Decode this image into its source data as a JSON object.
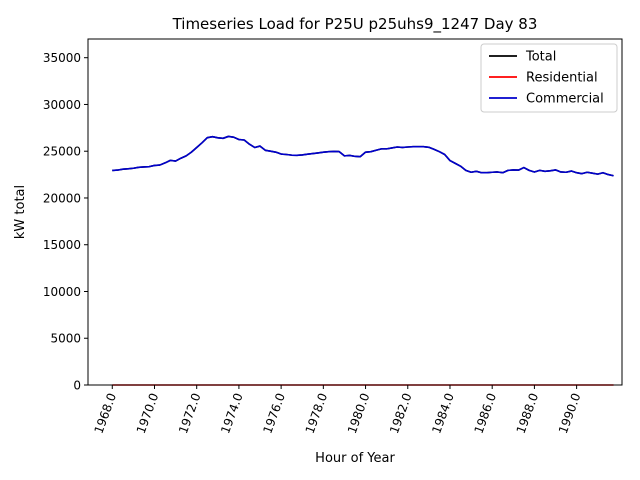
{
  "chart_data": {
    "type": "line",
    "title": "Timeseries Load for P25U p25uhs9_1247  Day 83",
    "xlabel": "Hour of Year",
    "ylabel": "kW total",
    "xlim": [
      1966.85,
      1992.15
    ],
    "ylim": [
      0,
      37000
    ],
    "xticks": [
      1968,
      1970,
      1972,
      1974,
      1976,
      1978,
      1980,
      1982,
      1984,
      1986,
      1988,
      1990
    ],
    "xtick_labels": [
      "1968.0",
      "1970.0",
      "1972.0",
      "1974.0",
      "1976.0",
      "1978.0",
      "1980.0",
      "1982.0",
      "1984.0",
      "1986.0",
      "1988.0",
      "1990.0"
    ],
    "yticks": [
      0,
      5000,
      10000,
      15000,
      20000,
      25000,
      30000,
      35000
    ],
    "ytick_labels": [
      "0",
      "5000",
      "10000",
      "15000",
      "20000",
      "25000",
      "30000",
      "35000"
    ],
    "legend_position": "top-right",
    "series": [
      {
        "name": "Total",
        "color": "#000000",
        "role": "total"
      },
      {
        "name": "Residential",
        "color": "#ff0000",
        "role": "residential"
      },
      {
        "name": "Commercial",
        "color": "#0000cc",
        "role": "commercial"
      }
    ],
    "x": [
      1968.0,
      1968.25,
      1968.5,
      1968.75,
      1969.0,
      1969.25,
      1969.5,
      1969.75,
      1970.0,
      1970.25,
      1970.5,
      1970.75,
      1971.0,
      1971.25,
      1971.5,
      1971.75,
      1972.0,
      1972.25,
      1972.5,
      1972.75,
      1973.0,
      1973.25,
      1973.5,
      1973.75,
      1974.0,
      1974.25,
      1974.5,
      1974.75,
      1975.0,
      1975.25,
      1975.5,
      1975.75,
      1976.0,
      1976.25,
      1976.5,
      1976.75,
      1977.0,
      1977.25,
      1977.5,
      1977.75,
      1978.0,
      1978.25,
      1978.5,
      1978.75,
      1979.0,
      1979.25,
      1979.5,
      1979.75,
      1980.0,
      1980.25,
      1980.5,
      1980.75,
      1981.0,
      1981.25,
      1981.5,
      1981.75,
      1982.0,
      1982.25,
      1982.5,
      1982.75,
      1983.0,
      1983.25,
      1983.5,
      1983.75,
      1984.0,
      1984.25,
      1984.5,
      1984.75,
      1985.0,
      1985.25,
      1985.5,
      1985.75,
      1986.0,
      1986.25,
      1986.5,
      1986.75,
      1987.0,
      1987.25,
      1987.5,
      1987.75,
      1988.0,
      1988.25,
      1988.5,
      1988.75,
      1989.0,
      1989.25,
      1989.5,
      1989.75,
      1990.0,
      1990.25,
      1990.5,
      1990.75,
      1991.0,
      1991.25,
      1991.5,
      1991.75
    ],
    "total": [
      22950,
      22980,
      23080,
      23120,
      23180,
      23280,
      23320,
      23350,
      23480,
      23520,
      23750,
      24020,
      23950,
      24250,
      24500,
      24900,
      25400,
      25900,
      26450,
      26550,
      26430,
      26380,
      26580,
      26500,
      26250,
      26200,
      25750,
      25400,
      25550,
      25100,
      25000,
      24900,
      24700,
      24650,
      24580,
      24560,
      24600,
      24680,
      24750,
      24820,
      24900,
      24950,
      24980,
      24960,
      24500,
      24550,
      24450,
      24420,
      24900,
      24950,
      25100,
      25250,
      25250,
      25350,
      25450,
      25400,
      25450,
      25480,
      25480,
      25480,
      25420,
      25200,
      24950,
      24650,
      24000,
      23700,
      23400,
      22950,
      22750,
      22850,
      22700,
      22700,
      22750,
      22780,
      22700,
      22950,
      23000,
      22980,
      23250,
      22950,
      22780,
      22950,
      22850,
      22900,
      23000,
      22780,
      22750,
      22880,
      22700,
      22600,
      22750,
      22650,
      22550,
      22700,
      22500,
      22380
    ],
    "residential": [
      0,
      0,
      0,
      0,
      0,
      0,
      0,
      0,
      0,
      0,
      0,
      0,
      0,
      0,
      0,
      0,
      0,
      0,
      0,
      0,
      0,
      0,
      0,
      0,
      0,
      0,
      0,
      0,
      0,
      0,
      0,
      0,
      0,
      0,
      0,
      0,
      0,
      0,
      0,
      0,
      0,
      0,
      0,
      0,
      0,
      0,
      0,
      0,
      0,
      0,
      0,
      0,
      0,
      0,
      0,
      0,
      0,
      0,
      0,
      0,
      0,
      0,
      0,
      0,
      0,
      0,
      0,
      0,
      0,
      0,
      0,
      0,
      0,
      0,
      0,
      0,
      0,
      0,
      0,
      0,
      0,
      0,
      0,
      0,
      0,
      0,
      0,
      0,
      0,
      0,
      0,
      0,
      0,
      0,
      0,
      0
    ],
    "commercial": [
      22950,
      22980,
      23080,
      23120,
      23180,
      23280,
      23320,
      23350,
      23480,
      23520,
      23750,
      24020,
      23950,
      24250,
      24500,
      24900,
      25400,
      25900,
      26450,
      26550,
      26430,
      26380,
      26580,
      26500,
      26250,
      26200,
      25750,
      25400,
      25550,
      25100,
      25000,
      24900,
      24700,
      24650,
      24580,
      24560,
      24600,
      24680,
      24750,
      24820,
      24900,
      24950,
      24980,
      24960,
      24500,
      24550,
      24450,
      24420,
      24900,
      24950,
      25100,
      25250,
      25250,
      25350,
      25450,
      25400,
      25450,
      25480,
      25480,
      25480,
      25420,
      25200,
      24950,
      24650,
      24000,
      23700,
      23400,
      22950,
      22750,
      22850,
      22700,
      22700,
      22750,
      22780,
      22700,
      22950,
      23000,
      22980,
      23250,
      22950,
      22780,
      22950,
      22850,
      22900,
      23000,
      22780,
      22750,
      22880,
      22700,
      22600,
      22750,
      22650,
      22550,
      22700,
      22500,
      22380
    ]
  }
}
